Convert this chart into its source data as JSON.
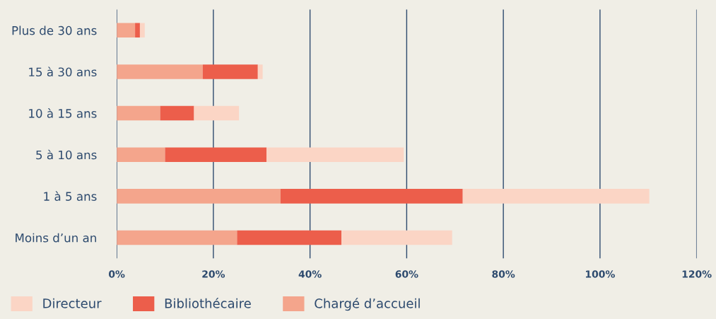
{
  "chart_data": {
    "type": "bar",
    "orientation": "horizontal",
    "stacked": true,
    "categories": [
      "Plus de 30 ans",
      "15 à 30 ans",
      "10 à 15 ans",
      "5 à 10 ans",
      "1 à 5 ans",
      "Moins d’un an"
    ],
    "series": [
      {
        "name": "Chargé d’accueil",
        "color": "#f4a58c",
        "values": [
          3.8,
          17.8,
          9.0,
          10.0,
          33.9,
          24.9
        ]
      },
      {
        "name": "Bibliothécaire",
        "color": "#ec5e4b",
        "values": [
          1.0,
          11.4,
          7.0,
          21.0,
          37.7,
          21.6
        ]
      },
      {
        "name": "Directeur",
        "color": "#fbd5c5",
        "values": [
          1.0,
          1.0,
          9.3,
          28.4,
          38.6,
          22.9
        ]
      }
    ],
    "xlim": [
      0,
      120
    ],
    "xticks": [
      {
        "value": 0,
        "label": "0%"
      },
      {
        "value": 20,
        "label": "20%"
      },
      {
        "value": 40,
        "label": "40%"
      },
      {
        "value": 60,
        "label": "60%"
      },
      {
        "value": 80,
        "label": "80%"
      },
      {
        "value": 100,
        "label": "100%"
      },
      {
        "value": 120,
        "label": "120%"
      }
    ],
    "grid": "x",
    "legend": "bottom left"
  }
}
